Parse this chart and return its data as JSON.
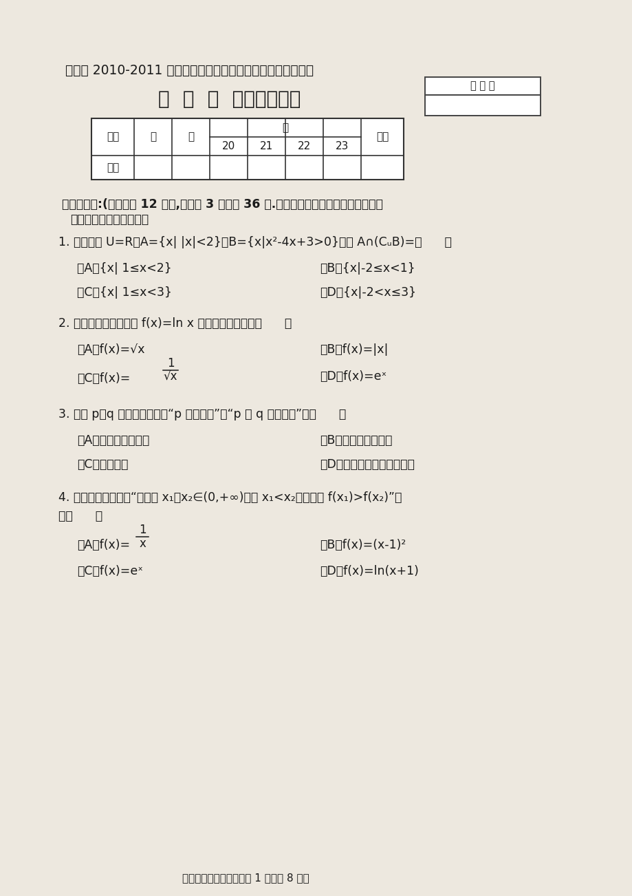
{
  "bg_color": "#ede8df",
  "text_color": "#1a1a1a",
  "title1": "河西区 2010-2011 学年度第二学期高二年级期末模块质量调查",
  "title2": "数  学  试  卷（文史类）",
  "seat_label": "座 位 号",
  "sub_labels": [
    "20",
    "21",
    "22",
    "23"
  ],
  "section1_line1": "一、选择题:(本大题共 12 小题,每小题 3 分，共 36 分.在每小题给出的四个选项中，只有",
  "section1_line2": "一项是符合题目要求的）",
  "q1": "1. 已知全集 U=R，A={x| |x|<2}，B={x|x²-4x+3>0}，则 A∩(CᵤB)=（      ）",
  "q1a": "（A）{x| 1≤x<2}",
  "q1b": "（B）{x|-2≤x<1}",
  "q1c": "（C）{x| 1≤x<3}",
  "q1d": "（D）{x|-2<x≤3}",
  "q2": "2. 下列函数中，与函数 f(x)=ln x 有相同定义域的是（      ）",
  "q2a": "（A）f(x)=√x",
  "q2b": "（B）f(x)=|x|",
  "q2c_text": "（C）f(x)=",
  "q2d": "（D）f(x)=eˣ",
  "q3": "3. 已知 p、q 是两个命题，则“p 是真命题”是“p 且 q 是真命题”的（      ）",
  "q3a": "（A）充分不必要条件",
  "q3b": "（B）必要不充分条件",
  "q3c": "（C）充要条件",
  "q3d": "（D）既不充分也不必要条件",
  "q4line1": "4. 下列函数中，满足“对任意 x₁，x₂∈(0,+∞)，当 x₁<x₂时，都有 f(x₁)>f(x₂)”的",
  "q4line2": "是（      ）",
  "q4a_text": "（A）f(x)=",
  "q4b": "（B）f(x)=(x-1)²",
  "q4c": "（C）f(x)=eˣ",
  "q4d": "（D）f(x)=ln(x+1)",
  "footer": "高二数学试卷（文科）第 1 页（共 8 页）"
}
